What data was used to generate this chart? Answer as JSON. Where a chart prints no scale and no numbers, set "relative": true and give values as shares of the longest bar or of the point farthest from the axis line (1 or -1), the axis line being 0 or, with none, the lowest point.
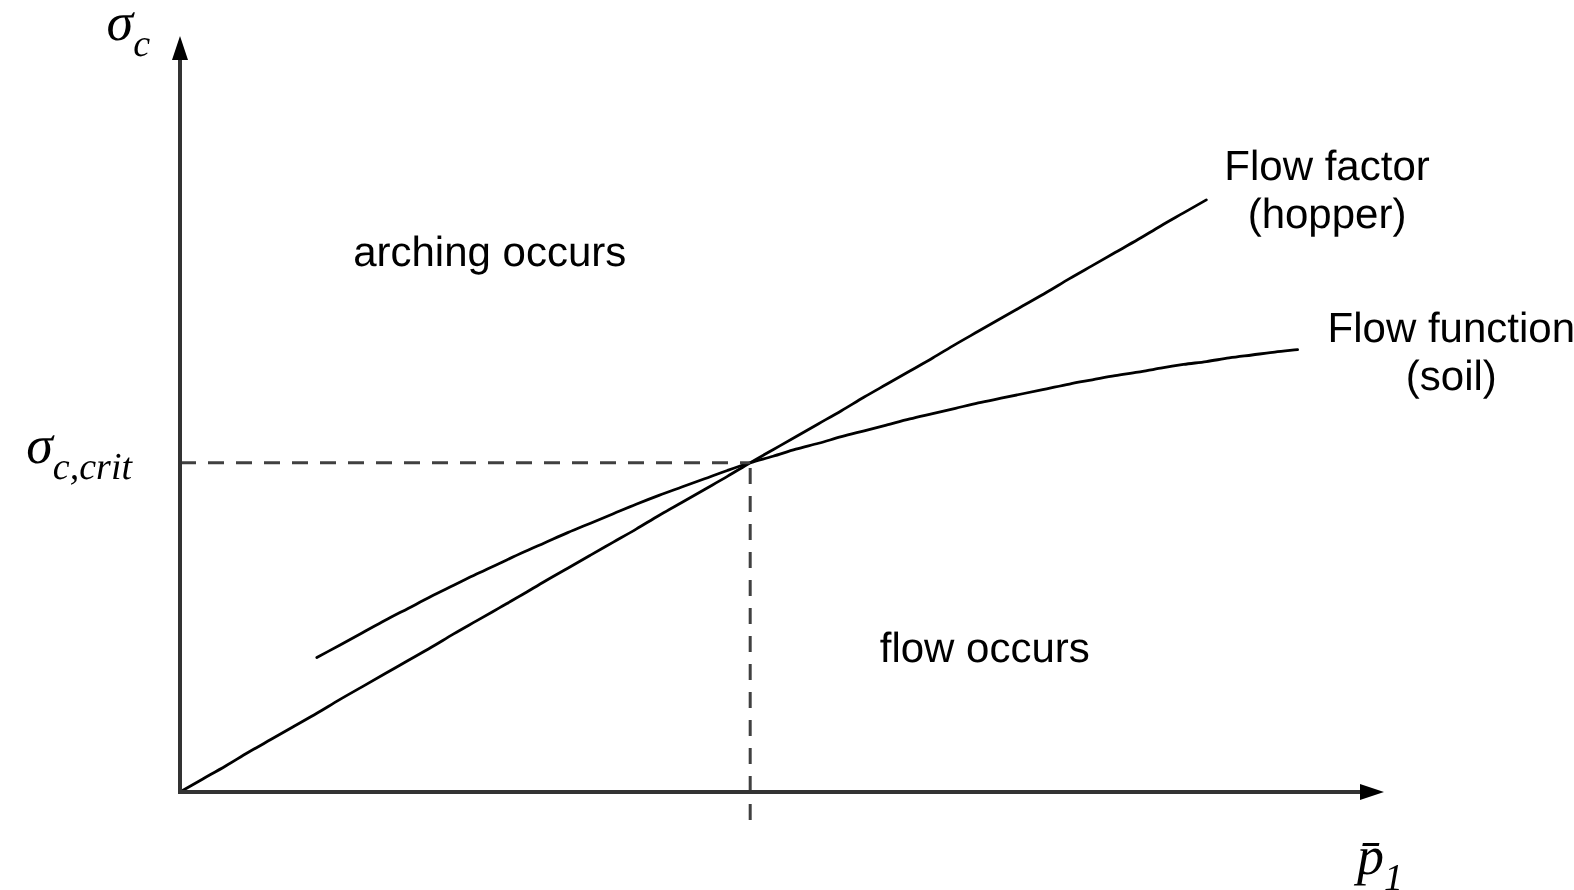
{
  "chart_data": {
    "type": "line",
    "xlabel": "p̄$_{1}$",
    "ylabel": "σ$_{c}$",
    "annotations": [
      "arching occurs",
      "flow occurs"
    ],
    "categories": [
      null,
      null,
      null,
      null,
      null,
      null,
      null,
      null,
      null,
      null,
      null,
      null,
      null,
      null,
      null,
      null,
      null,
      null,
      null,
      null,
      null,
      null,
      null,
      null,
      null,
      null,
      null,
      null,
      null,
      null,
      null,
      null,
      null,
      null,
      null,
      null,
      null,
      null,
      null,
      null,
      null,
      null,
      null,
      null,
      null,
      null,
      null,
      null,
      null,
      null,
      null,
      null,
      null
    ],
    "series": [
      {
        "name": "Flow factor (hopper)",
        "color": "#000000",
        "values": [
          0,
          0.022,
          0.044,
          0.067,
          0.089,
          0.111,
          0.133,
          0.156,
          0.178,
          0.2,
          0.222,
          0.244,
          0.267,
          0.289,
          0.311,
          0.333,
          0.356,
          0.378,
          0.4,
          0.422,
          0.444,
          0.467,
          0.489,
          0.511,
          0.533,
          0.556,
          0.578,
          0.6,
          0.622,
          0.644,
          0.667,
          0.689,
          0.711,
          0.733,
          0.756,
          0.778,
          0.8,
          0.822,
          0.844,
          0.867,
          0.889,
          0.911,
          0.933,
          0.956,
          0.978,
          1,
          null,
          null,
          null,
          null,
          null,
          null,
          null
        ]
      },
      {
        "name": "Flow function (soil)",
        "color": "#000000",
        "values": [
          null,
          null,
          null,
          null,
          null,
          null,
          0.227,
          0.248,
          0.269,
          0.29,
          0.31,
          0.33,
          0.349,
          0.368,
          0.386,
          0.404,
          0.421,
          0.438,
          0.454,
          0.47,
          0.486,
          0.501,
          0.515,
          0.529,
          0.543,
          0.556,
          0.567,
          0.579,
          0.589,
          0.6,
          0.61,
          0.62,
          0.63,
          0.639,
          0.648,
          0.657,
          0.665,
          0.673,
          0.681,
          0.689,
          0.696,
          0.703,
          0.709,
          0.716,
          0.722,
          0.727,
          0.733,
          0.738,
          0.743,
          0.747,
          null,
          null,
          null
        ]
      }
    ],
    "relative": true,
    "ref_lines": [
      {
        "axis": "y",
        "value": 0.556,
        "label": "σ$_{c,crit}$",
        "color": "#404040",
        "line_style": "dashed"
      }
    ]
  }
}
